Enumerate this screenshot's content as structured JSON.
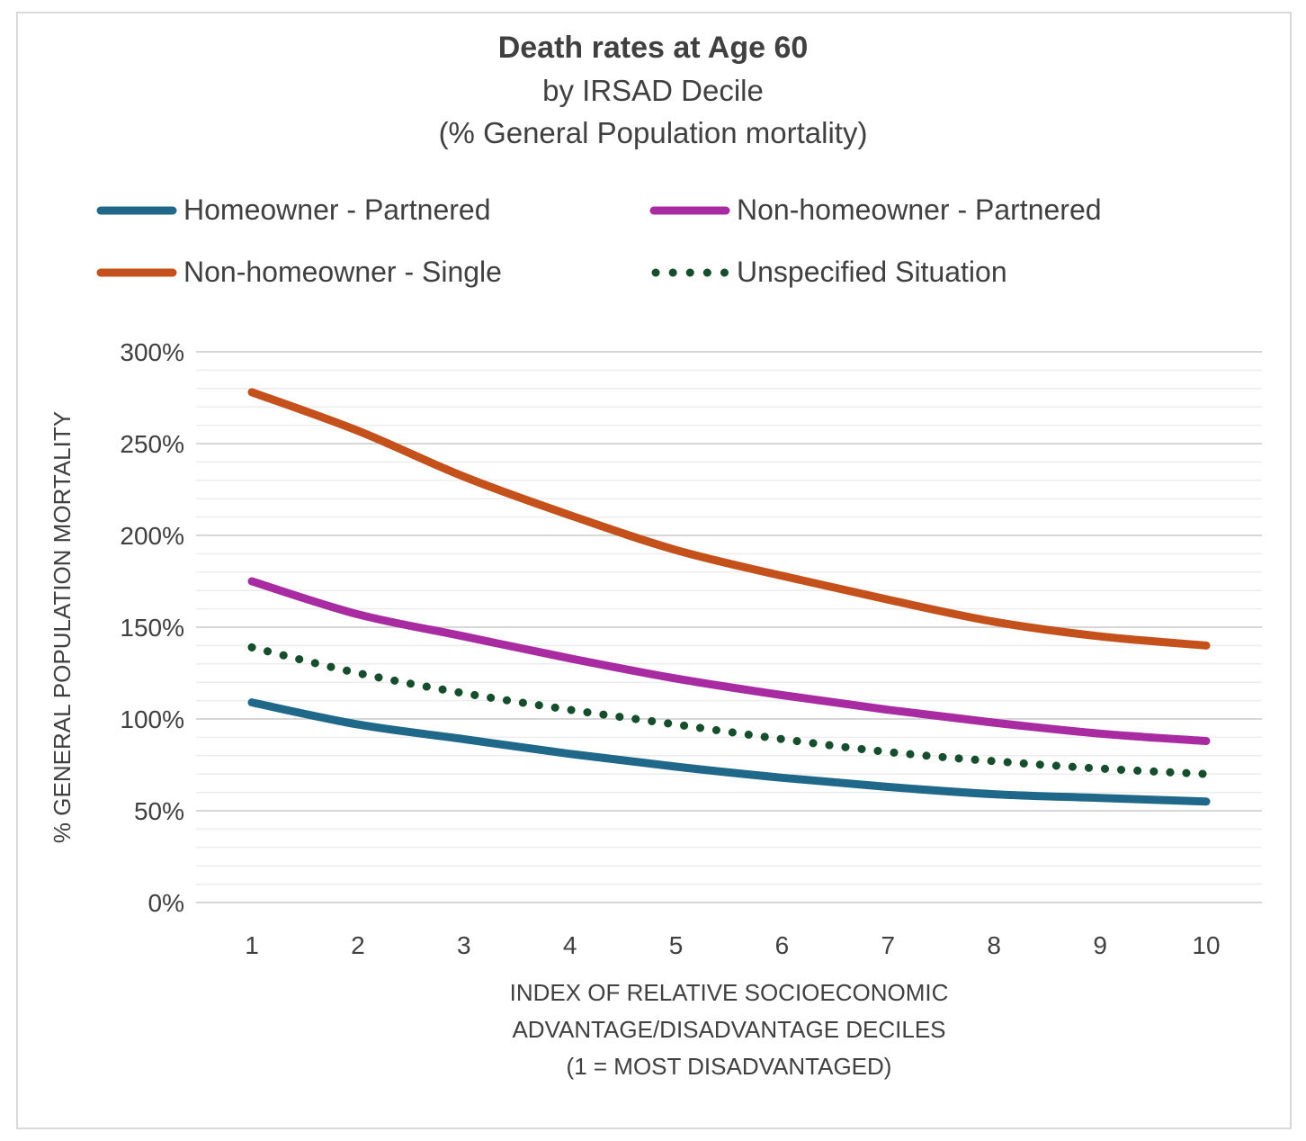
{
  "title": {
    "line1": "Death rates at Age 60",
    "line2": "by IRSAD Decile",
    "line3": "(% General Population mortality)"
  },
  "chart_data": {
    "type": "line",
    "title": "Death rates at Age 60 by IRSAD Decile (% General Population mortality)",
    "categories": [
      "1",
      "2",
      "3",
      "4",
      "5",
      "6",
      "7",
      "8",
      "9",
      "10"
    ],
    "series": [
      {
        "name": "Homeowner - Partnered",
        "color": "#20688A",
        "style": "solid",
        "values": [
          109,
          97,
          89,
          81,
          74,
          68,
          63,
          59,
          57,
          55
        ]
      },
      {
        "name": "Non-homeowner - Partnered",
        "color": "#A82BA2",
        "style": "solid",
        "values": [
          175,
          157,
          145,
          133,
          122,
          113,
          105,
          98,
          92,
          88
        ]
      },
      {
        "name": "Non-homeowner - Single",
        "color": "#C4511B",
        "style": "solid",
        "values": [
          278,
          257,
          232,
          211,
          192,
          178,
          165,
          153,
          145,
          140
        ]
      },
      {
        "name": "Unspecified Situation",
        "color": "#164D2C",
        "style": "dotted",
        "values": [
          139,
          125,
          114,
          105,
          97,
          89,
          82,
          77,
          73,
          70
        ]
      }
    ],
    "xlabel_lines": [
      "INDEX OF RELATIVE SOCIOECONOMIC",
      "ADVANTAGE/DISADVANTAGE DECILES",
      "(1 = MOST DISADVANTAGED)"
    ],
    "ylabel": "% GENERAL POPULATION MORTALITY",
    "ylim": [
      0,
      300
    ],
    "yticks": [
      "0%",
      "50%",
      "100%",
      "150%",
      "200%",
      "250%",
      "300%"
    ],
    "ytick_step": 50,
    "yminor_step": 10,
    "grid": true,
    "legend_position": "top"
  },
  "colors": {
    "text": "#404040",
    "grid_minor": "#EDEDED",
    "grid_major": "#D7D7D7",
    "axis_line": "#D7D7D7",
    "frame_border": "#D9D9D9"
  }
}
